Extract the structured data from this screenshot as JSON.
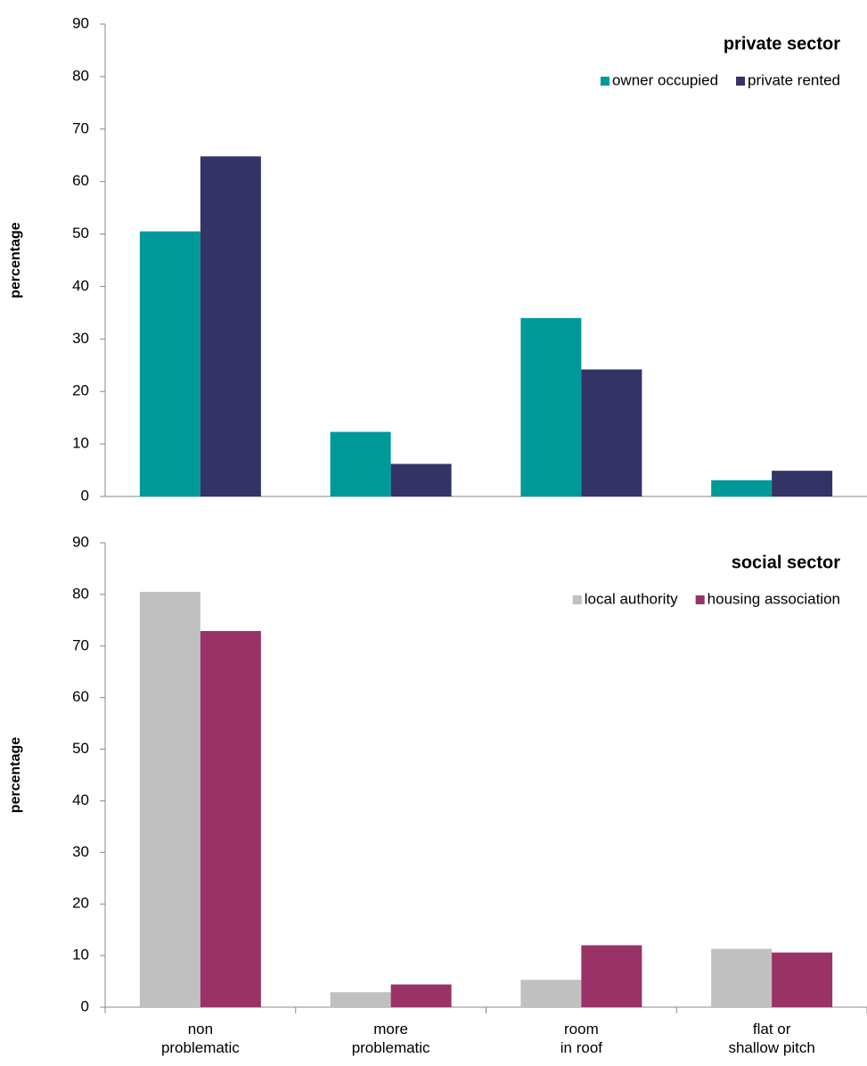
{
  "chart_data": [
    {
      "type": "bar",
      "title": "private sector",
      "y_label": "percentage",
      "categories": [
        null,
        null,
        null,
        null
      ],
      "series": [
        {
          "name": "owner occupied",
          "color": "#009999",
          "values": [
            50.5,
            12.3,
            34,
            3.1
          ]
        },
        {
          "name": "private rented",
          "color": "#333366",
          "values": [
            64.8,
            6.2,
            24.2,
            4.9
          ]
        }
      ],
      "ylim": [
        0,
        90
      ],
      "yticks": [
        0,
        10,
        20,
        30,
        40,
        50,
        60,
        70,
        80,
        90
      ],
      "legend": "top-right"
    },
    {
      "type": "bar",
      "title": "social sector",
      "y_label": "percentage",
      "categories": [
        "non\nproblematic",
        "more\nproblematic",
        "room\nin roof",
        "flat or\nshallow pitch"
      ],
      "series": [
        {
          "name": "local authority",
          "color": "#c0c0c0",
          "values": [
            80.5,
            2.9,
            5.3,
            11.3
          ]
        },
        {
          "name": "housing association",
          "color": "#993366",
          "values": [
            72.9,
            4.4,
            12,
            10.6
          ]
        }
      ],
      "ylim": [
        0,
        90
      ],
      "yticks": [
        0,
        10,
        20,
        30,
        40,
        50,
        60,
        70,
        80,
        90
      ],
      "legend": "top-right"
    }
  ]
}
